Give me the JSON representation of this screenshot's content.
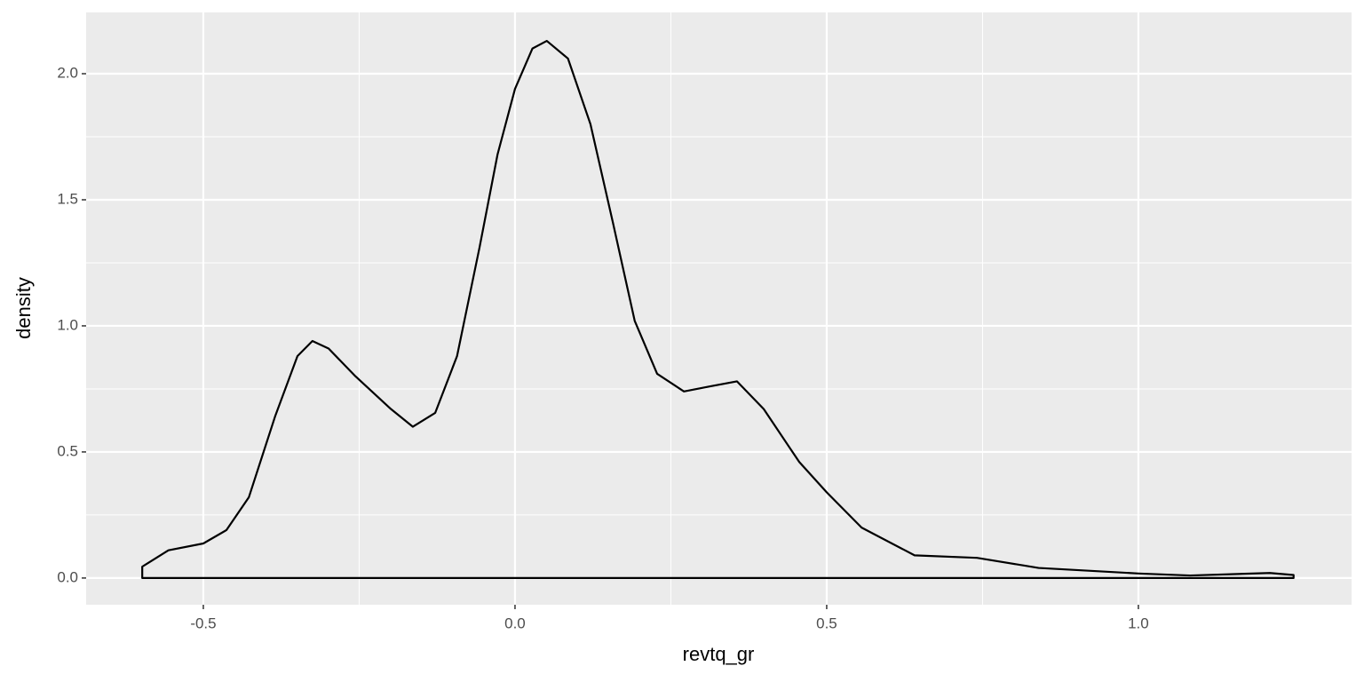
{
  "chart_data": {
    "type": "density",
    "x_label": "revtq_gr",
    "y_label": "density",
    "x": [
      -0.598,
      -0.598,
      -0.556,
      -0.5,
      -0.463,
      -0.427,
      -0.385,
      -0.349,
      -0.325,
      -0.299,
      -0.256,
      -0.199,
      -0.164,
      -0.128,
      -0.093,
      -0.057,
      -0.028,
      0,
      0.028,
      0.051,
      0.085,
      0.121,
      0.157,
      0.192,
      0.228,
      0.271,
      0.313,
      0.356,
      0.399,
      0.456,
      0.5,
      0.556,
      0.641,
      0.741,
      0.84,
      1.0,
      1.083,
      1.211,
      1.249,
      1.249
    ],
    "values": [
      0,
      0.045,
      0.11,
      0.137,
      0.19,
      0.32,
      0.64,
      0.88,
      0.94,
      0.91,
      0.8,
      0.67,
      0.6,
      0.655,
      0.88,
      1.31,
      1.68,
      1.94,
      2.1,
      2.13,
      2.06,
      1.8,
      1.41,
      1.02,
      0.81,
      0.74,
      0.76,
      0.78,
      0.67,
      0.46,
      0.34,
      0.2,
      0.09,
      0.08,
      0.04,
      0.018,
      0.01,
      0.02,
      0.012,
      0
    ],
    "color": "#000000",
    "xlim": [
      -0.688,
      1.342
    ],
    "ylim": [
      -0.106,
      2.243
    ],
    "xticks": [
      -0.5,
      {
        "value": 0,
        "label": "0.0"
      },
      0.5,
      {
        "value": 1,
        "label": "1.0"
      }
    ],
    "yticks": [
      {
        "value": 0,
        "label": "0.0"
      },
      0.5,
      {
        "value": 1,
        "label": "1.0"
      },
      1.5,
      {
        "value": 2,
        "label": "2.0"
      }
    ],
    "x_minor_ticks": [
      -0.25,
      0.25,
      0.75
    ],
    "y_minor_ticks": [
      0.25,
      0.75,
      1.25,
      1.75
    ],
    "grid": true
  }
}
